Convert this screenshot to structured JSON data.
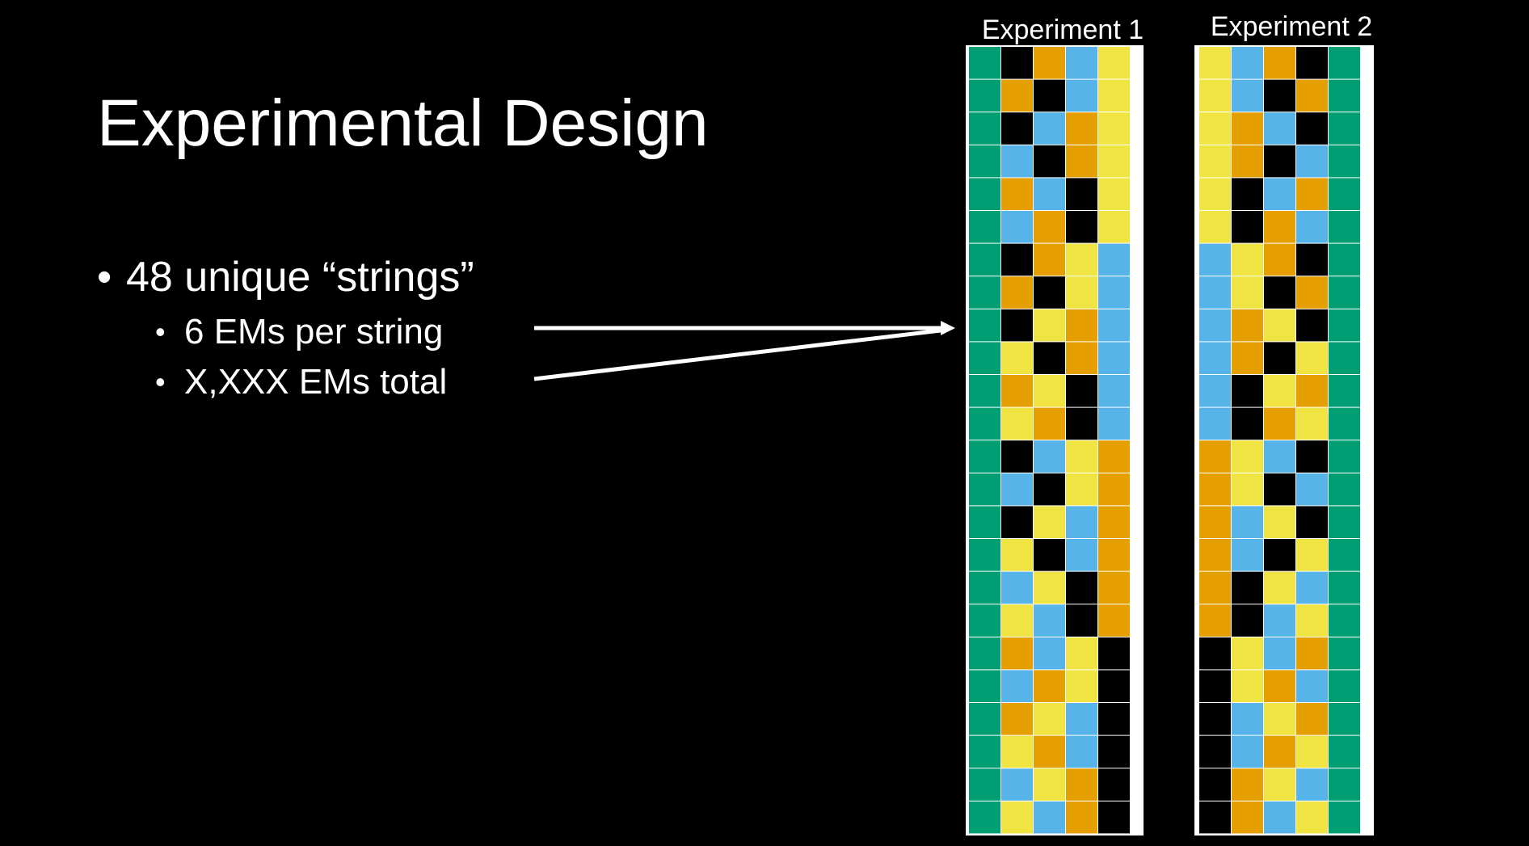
{
  "slide": {
    "title": "Experimental Design",
    "bullets": [
      {
        "text": "48 unique “strings”",
        "sub": [
          "6 EMs per string",
          "X,XXX EMs total"
        ]
      }
    ]
  },
  "colors": {
    "G": "#009E73",
    "O": "#E69F00",
    "B": "#56B4E9",
    "Y": "#F0E442",
    "K": "#000000"
  },
  "experiments": [
    {
      "label": "Experiment 1",
      "rows": [
        "GKOBY",
        "GOKBY",
        "GKBOY",
        "GBKOY",
        "GOBKY",
        "GBOKY",
        "GKOYB",
        "GOKYB",
        "GKYOB",
        "GYKOB",
        "GOYKB",
        "GYOKB",
        "GKBYO",
        "GBKYO",
        "GKYBO",
        "GYKBO",
        "GBYKO",
        "GYBKO",
        "GOBYK",
        "GBOYK",
        "GOYBK",
        "GYOBK",
        "GBYOK",
        "GYBOK"
      ]
    },
    {
      "label": "Experiment 2",
      "rows": [
        "YBOKG",
        "YBKOG",
        "YOBKG",
        "YOKBG",
        "YKBOG",
        "YKOBG",
        "BYOKG",
        "BYKOG",
        "BOYKG",
        "BOKYG",
        "BKYOG",
        "BKOYG",
        "OYBKG",
        "OYKBG",
        "OBYKG",
        "OBKYG",
        "OKYBG",
        "OKBYG",
        "KYBOG",
        "KYOBG",
        "KBYOG",
        "KBOYG",
        "KOYBG",
        "KOBYG"
      ]
    }
  ]
}
